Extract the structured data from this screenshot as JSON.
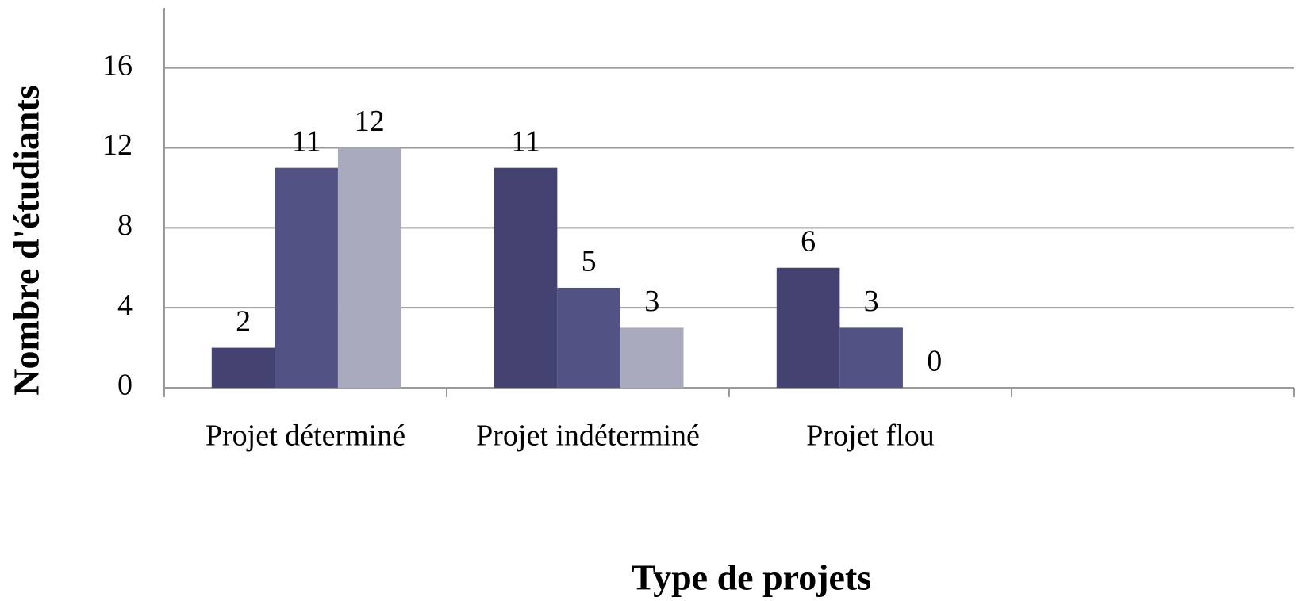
{
  "chart_data": {
    "type": "bar",
    "x_label": "Type de projets",
    "y_label": "Nombre d'étudiants",
    "categories": [
      "Projet déterminé",
      "Projet indéterminé",
      "Projet flou",
      null
    ],
    "series": [
      {
        "color": "#434270",
        "values": [
          2,
          11,
          6,
          null
        ]
      },
      {
        "color": "#525384",
        "values": [
          11,
          5,
          3,
          null
        ]
      },
      {
        "color": "#a9aabd",
        "values": [
          12,
          3,
          0,
          null
        ]
      }
    ],
    "ylim": [
      0,
      19
    ],
    "yticks": [
      0,
      4,
      8,
      12,
      16
    ],
    "grid": true
  }
}
